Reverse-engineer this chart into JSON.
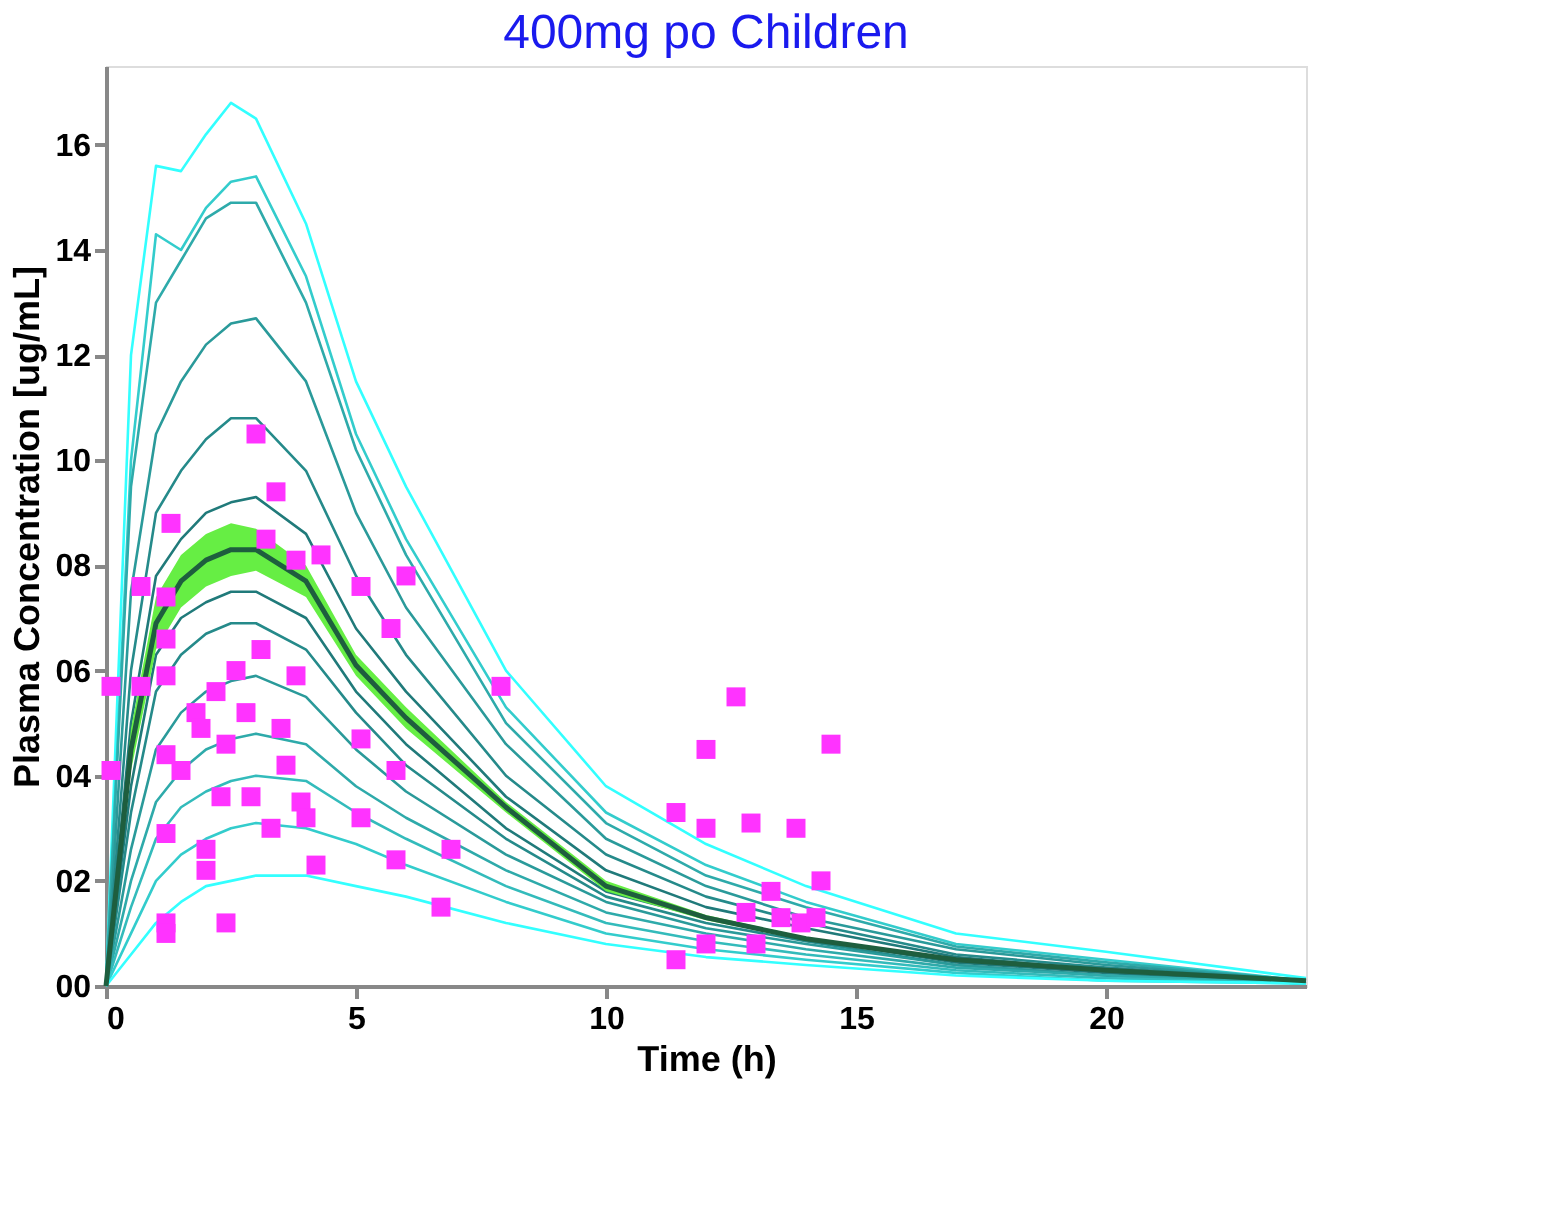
{
  "chart_data": {
    "type": "line",
    "title": "400mg po Children",
    "xlabel": "Time (h)",
    "ylabel": "Plasma Concentration [ug/mL]",
    "xlim": [
      0,
      24
    ],
    "xticks": [
      0,
      5,
      10,
      15,
      20
    ],
    "ylim": [
      0,
      17.5
    ],
    "yticks": [
      {
        "value": 0,
        "label": "00"
      },
      {
        "value": 2,
        "label": "02"
      },
      {
        "value": 4,
        "label": "04"
      },
      {
        "value": 6,
        "label": "06"
      },
      {
        "value": 8,
        "label": "08"
      },
      10,
      12,
      14,
      16
    ],
    "grid": false,
    "legend": false,
    "marker": "none",
    "line_style": "solid",
    "x": [
      0,
      0.5,
      1,
      1.5,
      2,
      2.5,
      3,
      4,
      5,
      6,
      8,
      10,
      12,
      14,
      17,
      20,
      24
    ],
    "series": [
      {
        "color": "#33ffff",
        "values": [
          0,
          12,
          15.6,
          15.5,
          16.2,
          16.8,
          16.5,
          14.5,
          11.5,
          9.5,
          6.0,
          3.8,
          2.7,
          1.9,
          1.0,
          0.65,
          0.15
        ]
      },
      {
        "color": "#33cccc",
        "values": [
          0,
          10,
          14.3,
          14.0,
          14.8,
          15.3,
          15.4,
          13.5,
          10.5,
          8.5,
          5.3,
          3.3,
          2.3,
          1.6,
          0.8,
          0.5,
          0.1
        ]
      },
      {
        "color": "#2eaaaa",
        "values": [
          0,
          9.5,
          13.0,
          13.8,
          14.6,
          14.9,
          14.9,
          13.0,
          10.2,
          8.2,
          5.0,
          3.1,
          2.1,
          1.5,
          0.75,
          0.45,
          0.1
        ]
      },
      {
        "color": "#2a9a9a",
        "values": [
          0,
          7.5,
          10.5,
          11.5,
          12.2,
          12.6,
          12.7,
          11.5,
          9.0,
          7.2,
          4.6,
          2.8,
          1.9,
          1.3,
          0.7,
          0.4,
          0.1
        ]
      },
      {
        "color": "#258a8a",
        "values": [
          0,
          6,
          9.0,
          9.8,
          10.4,
          10.8,
          10.8,
          9.8,
          7.8,
          6.3,
          4.0,
          2.5,
          1.7,
          1.2,
          0.6,
          0.35,
          0.1
        ]
      },
      {
        "color": "#207a7a",
        "values": [
          0,
          5,
          7.8,
          8.5,
          9.0,
          9.2,
          9.3,
          8.6,
          6.8,
          5.6,
          3.6,
          2.2,
          1.5,
          1.1,
          0.55,
          0.3,
          0.1
        ]
      },
      {
        "color": "#207a7a",
        "values": [
          0,
          3.8,
          6.3,
          7.0,
          7.3,
          7.5,
          7.5,
          7.0,
          5.6,
          4.6,
          3.0,
          1.8,
          1.3,
          0.9,
          0.45,
          0.25,
          0.05
        ]
      },
      {
        "color": "#258a8a",
        "values": [
          0,
          3.3,
          5.6,
          6.3,
          6.7,
          6.9,
          6.9,
          6.4,
          5.2,
          4.2,
          2.8,
          1.7,
          1.2,
          0.85,
          0.4,
          0.2,
          0.05
        ]
      },
      {
        "color": "#2a9a9a",
        "values": [
          0,
          2.6,
          4.5,
          5.2,
          5.6,
          5.8,
          5.9,
          5.5,
          4.5,
          3.7,
          2.5,
          1.6,
          1.1,
          0.8,
          0.4,
          0.2,
          0.05
        ]
      },
      {
        "color": "#2eaaaa",
        "values": [
          0,
          2,
          3.5,
          4.1,
          4.5,
          4.7,
          4.8,
          4.6,
          3.8,
          3.2,
          2.2,
          1.4,
          1.0,
          0.7,
          0.35,
          0.2,
          0.05
        ]
      },
      {
        "color": "#33bbbb",
        "values": [
          0,
          1.5,
          2.8,
          3.4,
          3.7,
          3.9,
          4.0,
          3.9,
          3.3,
          2.8,
          1.9,
          1.2,
          0.85,
          0.6,
          0.3,
          0.15,
          0.05
        ]
      },
      {
        "color": "#33cccc",
        "values": [
          0,
          1.0,
          2.0,
          2.5,
          2.8,
          3.0,
          3.1,
          3.0,
          2.7,
          2.3,
          1.6,
          1.0,
          0.7,
          0.5,
          0.25,
          0.1,
          0.05
        ]
      },
      {
        "color": "#33ffff",
        "values": [
          0,
          0.6,
          1.2,
          1.6,
          1.9,
          2.0,
          2.1,
          2.1,
          1.9,
          1.7,
          1.2,
          0.8,
          0.55,
          0.4,
          0.2,
          0.1,
          0.05
        ]
      },
      {
        "color": "#1e5e3e",
        "values": [
          0,
          4.5,
          6.9,
          7.7,
          8.1,
          8.3,
          8.3,
          7.7,
          6.1,
          5.1,
          3.4,
          1.9,
          1.3,
          0.9,
          0.5,
          0.3,
          0.1
        ],
        "lower": [
          0,
          4.1,
          6.4,
          7.2,
          7.6,
          7.8,
          7.9,
          7.4,
          5.9,
          4.9,
          3.3,
          1.8,
          1.25,
          0.87,
          0.48,
          0.29,
          0.1
        ],
        "upper": [
          0,
          4.9,
          7.4,
          8.2,
          8.6,
          8.8,
          8.7,
          8.0,
          6.3,
          5.3,
          3.5,
          2.0,
          1.35,
          0.93,
          0.52,
          0.31,
          0.1
        ]
      },
      {
        "type": "scatter",
        "marker": "square",
        "color": "#ff33ff",
        "x": [
          0.1,
          0.1,
          0.7,
          0.7,
          1.3,
          1.2,
          1.2,
          1.2,
          1.2,
          1.5,
          1.2,
          1.2,
          1.2,
          1.8,
          1.9,
          2.2,
          2.0,
          2.0,
          2.3,
          2.4,
          2.4,
          2.6,
          2.8,
          2.9,
          3.1,
          3.2,
          3.3,
          3.5,
          3.8,
          3.6,
          3.9,
          4.0,
          4.2,
          3.8,
          4.3,
          5.1,
          5.1,
          5.1,
          6.0,
          5.7,
          5.8,
          5.8,
          6.9,
          6.7,
          7.9,
          3.0,
          3.4,
          12.6,
          12.0,
          14.5,
          11.4,
          12.0,
          12.9,
          13.8,
          14.3,
          13.3,
          12.8,
          13.5,
          13.9,
          14.2,
          12.0,
          13.0,
          11.4
        ],
        "values": [
          4.1,
          5.7,
          5.7,
          7.6,
          8.8,
          7.4,
          6.6,
          5.9,
          4.4,
          4.1,
          2.9,
          1.2,
          1.0,
          5.2,
          4.9,
          5.6,
          2.6,
          2.2,
          3.6,
          4.6,
          1.2,
          6.0,
          5.2,
          3.6,
          6.4,
          8.5,
          3.0,
          4.9,
          5.9,
          4.2,
          3.5,
          3.2,
          2.3,
          8.1,
          8.2,
          7.6,
          4.7,
          3.2,
          7.8,
          6.8,
          4.1,
          2.4,
          2.6,
          1.5,
          5.7,
          10.5,
          9.4,
          5.5,
          4.5,
          4.6,
          3.3,
          3.0,
          3.1,
          3.0,
          2.0,
          1.8,
          1.4,
          1.3,
          1.2,
          1.3,
          0.8,
          0.8,
          0.5
        ]
      }
    ]
  }
}
